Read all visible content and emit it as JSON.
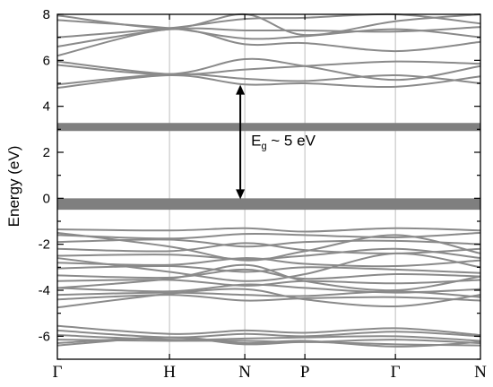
{
  "chart_data": {
    "type": "line",
    "ylabel": "Energy (eV)",
    "xlabel": "",
    "ylim": [
      -7,
      8
    ],
    "y_ticks": [
      -6,
      -4,
      -2,
      0,
      2,
      4,
      6,
      8
    ],
    "k_points": [
      "Γ",
      "H",
      "N",
      "P",
      "Γ",
      "N"
    ],
    "k_positions": [
      0,
      0.265,
      0.443,
      0.585,
      0.799,
      1.0
    ],
    "grid": "vertical lines at high-symmetry points",
    "annotation": {
      "label_main": "E",
      "label_sub": "g",
      "label_rest": " ~ 5 eV",
      "arrow_from": 0.0,
      "arrow_to": 4.9
    },
    "flat_bands": [
      {
        "name": "defect_upper",
        "energy": 3.1,
        "thickness_eV": 0.35
      },
      {
        "name": "defect_lower",
        "energy": -0.25,
        "thickness_eV": 0.5
      }
    ],
    "series": [
      {
        "values": [
          7.75,
          7.4,
          6.95,
          7.05,
          7.35,
          7.0
        ]
      },
      {
        "values": [
          7.95,
          7.4,
          8.0,
          7.1,
          7.7,
          8.0
        ]
      },
      {
        "values": [
          7.0,
          7.4,
          7.8,
          7.85,
          8.0,
          7.6
        ]
      },
      {
        "values": [
          6.6,
          7.35,
          7.3,
          7.3,
          7.25,
          7.45
        ]
      },
      {
        "values": [
          6.2,
          7.35,
          6.7,
          6.75,
          6.4,
          6.8
        ]
      },
      {
        "values": [
          5.95,
          5.4,
          5.6,
          5.75,
          5.95,
          5.85
        ]
      },
      {
        "values": [
          5.8,
          5.4,
          6.05,
          5.75,
          5.15,
          5.75
        ]
      },
      {
        "values": [
          4.95,
          5.4,
          5.2,
          5.1,
          5.35,
          5.0
        ]
      },
      {
        "values": [
          4.8,
          5.35,
          4.95,
          5.0,
          4.85,
          5.3
        ]
      },
      {
        "values": [
          -1.35,
          -1.4,
          -1.3,
          -1.45,
          -1.3,
          -1.4
        ]
      },
      {
        "values": [
          -1.6,
          -1.75,
          -1.55,
          -1.6,
          -1.7,
          -1.5
        ]
      },
      {
        "values": [
          -1.9,
          -1.8,
          -2.1,
          -1.9,
          -1.85,
          -2.0
        ]
      },
      {
        "values": [
          -2.2,
          -2.3,
          -1.95,
          -2.25,
          -2.4,
          -2.2
        ]
      },
      {
        "values": [
          -2.5,
          -2.45,
          -2.65,
          -2.5,
          -2.2,
          -2.6
        ]
      },
      {
        "values": [
          -2.8,
          -2.9,
          -2.6,
          -2.85,
          -2.95,
          -2.7
        ]
      },
      {
        "values": [
          -3.05,
          -2.95,
          -3.2,
          -3.0,
          -3.1,
          -3.25
        ]
      },
      {
        "values": [
          -3.35,
          -3.45,
          -3.1,
          -3.5,
          -3.3,
          -3.4
        ]
      },
      {
        "values": [
          -3.6,
          -3.55,
          -3.8,
          -3.6,
          -3.7,
          -3.55
        ]
      },
      {
        "values": [
          -3.9,
          -4.05,
          -3.75,
          -3.9,
          -4.1,
          -3.95
        ]
      },
      {
        "values": [
          -4.2,
          -4.1,
          -4.2,
          -4.25,
          -4.05,
          -4.3
        ]
      },
      {
        "values": [
          -4.4,
          -4.2,
          -4.45,
          -4.35,
          -4.3,
          -4.45
        ]
      },
      {
        "values": [
          -4.75,
          -4.15,
          -3.95,
          -4.4,
          -4.7,
          -4.2
        ]
      },
      {
        "values": [
          -1.5,
          -2.1,
          -2.7,
          -2.3,
          -1.6,
          -2.4
        ]
      },
      {
        "values": [
          -2.6,
          -3.2,
          -3.6,
          -3.3,
          -2.4,
          -3.0
        ]
      },
      {
        "values": [
          -3.9,
          -3.5,
          -2.9,
          -3.6,
          -4.0,
          -3.4
        ]
      },
      {
        "values": [
          -5.55,
          -5.9,
          -5.75,
          -5.85,
          -5.65,
          -5.95
        ]
      },
      {
        "values": [
          -5.75,
          -6.05,
          -5.9,
          -6.0,
          -5.8,
          -6.0
        ]
      },
      {
        "values": [
          -5.95,
          -6.15,
          -6.1,
          -6.05,
          -6.0,
          -6.2
        ]
      },
      {
        "values": [
          -6.15,
          -6.2,
          -6.2,
          -6.25,
          -6.15,
          -6.3
        ]
      },
      {
        "values": [
          -6.3,
          -6.05,
          -6.35,
          -6.25,
          -6.35,
          -6.4
        ]
      },
      {
        "values": [
          -6.4,
          -6.05,
          -6.3,
          -6.2,
          -6.45,
          -6.25
        ]
      }
    ]
  }
}
